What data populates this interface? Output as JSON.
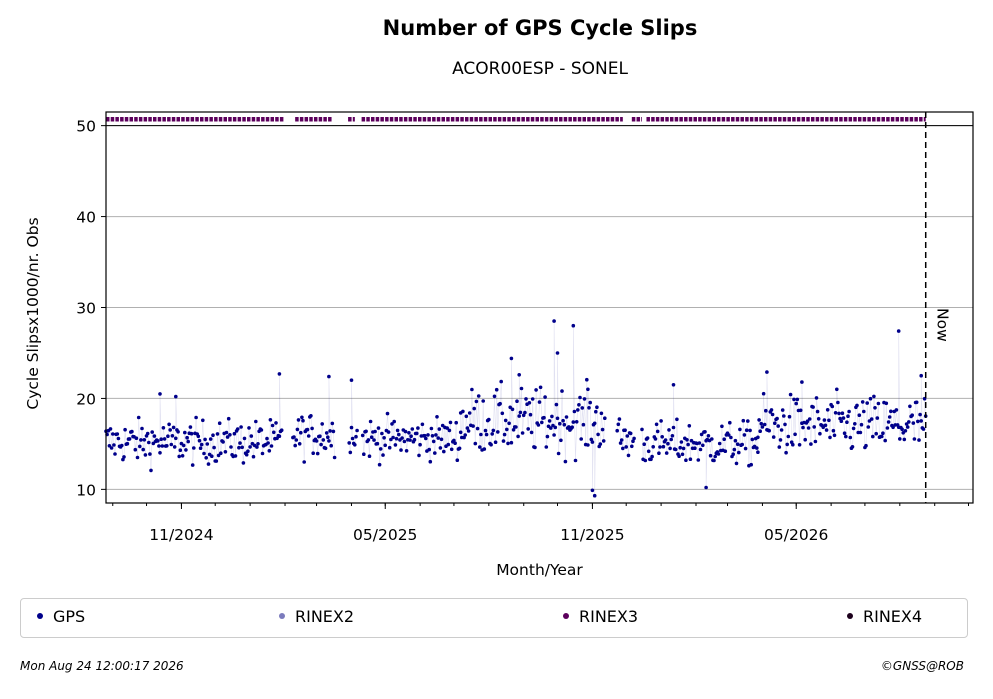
{
  "chart_data": {
    "type": "scatter",
    "title": "Number of GPS Cycle Slips",
    "subtitle": "ACOR00ESP - SONEL",
    "xlabel": "Month/Year",
    "ylabel": "Cycle Slipsx1000/nr. Obs",
    "x_range": [
      "2024-08-26",
      "2026-10-05"
    ],
    "ylim": [
      8.5,
      51.5
    ],
    "y_ticks": [
      10,
      20,
      30,
      40,
      50
    ],
    "x_ticks": [
      {
        "date": "2024-11-01",
        "label": "11/2024"
      },
      {
        "date": "2025-05-01",
        "label": "05/2025"
      },
      {
        "date": "2025-11-01",
        "label": "11/2025"
      },
      {
        "date": "2026-05-01",
        "label": "05/2026"
      }
    ],
    "grid": "horizontal",
    "now_marker": {
      "date": "2026-08-24",
      "label": "Now"
    },
    "gps_series": {
      "name": "GPS",
      "color": "#00008b",
      "segments": [
        {
          "start": "2024-08-26",
          "end": "2025-01-29",
          "mean": 15.2,
          "spread": 1.6
        },
        {
          "start": "2025-02-08",
          "end": "2025-03-17",
          "mean": 16.0,
          "spread": 1.6
        },
        {
          "start": "2025-03-30",
          "end": "2025-04-06",
          "mean": 16.0,
          "spread": 1.2
        },
        {
          "start": "2025-04-11",
          "end": "2025-07-07",
          "mean": 15.6,
          "spread": 1.5
        },
        {
          "start": "2025-07-07",
          "end": "2025-11-12",
          "mean": 17.5,
          "spread": 2.4
        },
        {
          "start": "2025-11-23",
          "end": "2025-12-08",
          "mean": 15.5,
          "spread": 1.7
        },
        {
          "start": "2025-12-15",
          "end": "2026-03-28",
          "mean": 15.0,
          "spread": 1.6
        },
        {
          "start": "2026-03-28",
          "end": "2026-08-24",
          "mean": 17.0,
          "spread": 2.2
        }
      ],
      "highlights": [
        {
          "date": "2024-10-13",
          "value": 20.5
        },
        {
          "date": "2024-10-27",
          "value": 20.2
        },
        {
          "date": "2025-01-27",
          "value": 22.7
        },
        {
          "date": "2025-03-12",
          "value": 22.4
        },
        {
          "date": "2025-04-01",
          "value": 22.0
        },
        {
          "date": "2025-08-21",
          "value": 24.4
        },
        {
          "date": "2025-08-28",
          "value": 22.6
        },
        {
          "date": "2025-09-28",
          "value": 28.5
        },
        {
          "date": "2025-10-01",
          "value": 25.0
        },
        {
          "date": "2025-10-15",
          "value": 28.0
        },
        {
          "date": "2025-10-28",
          "value": 21.0
        },
        {
          "date": "2025-11-01",
          "value": 9.9
        },
        {
          "date": "2025-11-03",
          "value": 9.3
        },
        {
          "date": "2026-01-12",
          "value": 21.5
        },
        {
          "date": "2026-02-10",
          "value": 10.2
        },
        {
          "date": "2026-04-05",
          "value": 22.9
        },
        {
          "date": "2026-05-06",
          "value": 21.8
        },
        {
          "date": "2026-07-31",
          "value": 27.4
        },
        {
          "date": "2026-08-20",
          "value": 22.5
        }
      ]
    },
    "rinex3_availability": {
      "name": "RINEX3",
      "color": "#5c005c",
      "value": 50.7,
      "segments": [
        {
          "start": "2024-08-26",
          "end": "2025-01-31"
        },
        {
          "start": "2025-02-10",
          "end": "2025-03-15"
        },
        {
          "start": "2025-03-29",
          "end": "2025-04-04"
        },
        {
          "start": "2025-04-10",
          "end": "2025-11-28"
        },
        {
          "start": "2025-12-06",
          "end": "2025-12-15"
        },
        {
          "start": "2025-12-19",
          "end": "2026-08-24"
        }
      ]
    },
    "legend": [
      {
        "label": "GPS",
        "color": "#00008b"
      },
      {
        "label": "RINEX2",
        "color": "#7b7bbd"
      },
      {
        "label": "RINEX3",
        "color": "#5c005c"
      },
      {
        "label": "RINEX4",
        "color": "#1c001c"
      }
    ]
  },
  "footer": {
    "timestamp": "Mon Aug 24 12:00:17 2026",
    "copyright": "©GNSS@ROB"
  }
}
